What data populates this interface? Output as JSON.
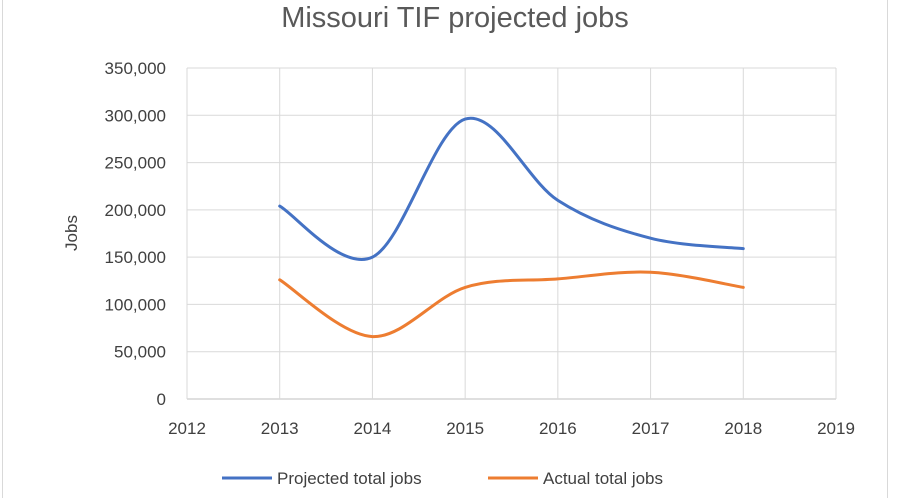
{
  "chart_data": {
    "type": "line",
    "title": "Missouri TIF projected jobs",
    "xlabel": "",
    "ylabel": "Jobs",
    "xlim": [
      2012,
      2019
    ],
    "ylim": [
      0,
      350000
    ],
    "x_ticks": [
      "2012",
      "2013",
      "2014",
      "2015",
      "2016",
      "2017",
      "2018",
      "2019"
    ],
    "y_ticks": [
      "0",
      "50,000",
      "100,000",
      "150,000",
      "200,000",
      "250,000",
      "300,000",
      "350,000"
    ],
    "grid": true,
    "legend_position": "bottom",
    "smooth": true,
    "x": [
      2013,
      2014,
      2015,
      2016,
      2017,
      2018
    ],
    "series": [
      {
        "name": "Projected total jobs",
        "color": "#4472c4",
        "values": [
          204000,
          150000,
          296000,
          210000,
          170000,
          159000
        ]
      },
      {
        "name": "Actual total jobs",
        "color": "#ed7d31",
        "values": [
          126000,
          66000,
          118000,
          127000,
          134000,
          118000
        ]
      }
    ]
  }
}
